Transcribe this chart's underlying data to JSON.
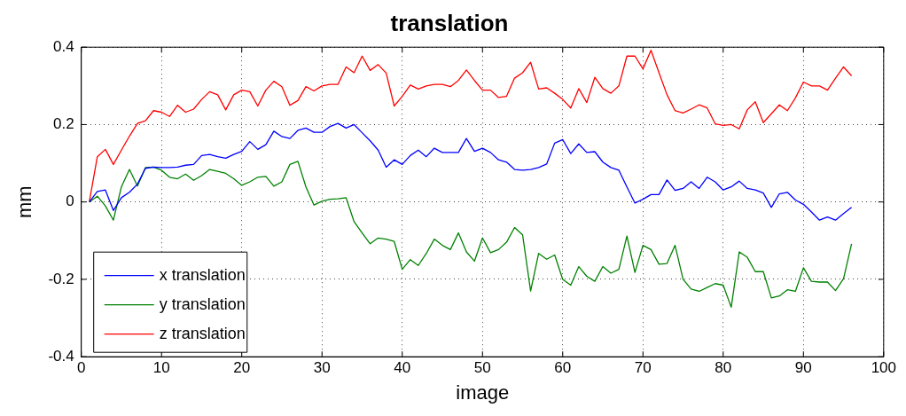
{
  "chart_data": {
    "type": "line",
    "title": "translation",
    "xlabel": "image",
    "ylabel": "mm",
    "x": [
      1,
      2,
      3,
      4,
      5,
      6,
      7,
      8,
      9,
      10,
      11,
      12,
      13,
      14,
      15,
      16,
      17,
      18,
      19,
      20,
      21,
      22,
      23,
      24,
      25,
      26,
      27,
      28,
      29,
      30,
      31,
      32,
      33,
      34,
      35,
      36,
      37,
      38,
      39,
      40,
      41,
      42,
      43,
      44,
      45,
      46,
      47,
      48,
      49,
      50,
      51,
      52,
      53,
      54,
      55,
      56,
      57,
      58,
      59,
      60,
      61,
      62,
      63,
      64,
      65,
      66,
      67,
      68,
      69,
      70,
      71,
      72,
      73,
      74,
      75,
      76,
      77,
      78,
      79,
      80,
      81,
      82,
      83,
      84,
      85,
      86,
      87,
      88,
      89,
      90,
      91,
      92,
      93,
      94,
      95,
      96
    ],
    "series": [
      {
        "name": "x translation",
        "color": "#0000ff",
        "values": [
          0,
          0.027,
          0.031,
          -0.022,
          0.011,
          0.025,
          0.046,
          0.087,
          0.09,
          0.089,
          0.089,
          0.09,
          0.095,
          0.097,
          0.12,
          0.123,
          0.117,
          0.113,
          0.123,
          0.131,
          0.156,
          0.136,
          0.148,
          0.183,
          0.169,
          0.164,
          0.185,
          0.191,
          0.18,
          0.18,
          0.195,
          0.203,
          0.191,
          0.2,
          0.179,
          0.158,
          0.134,
          0.09,
          0.109,
          0.097,
          0.12,
          0.134,
          0.117,
          0.139,
          0.128,
          0.128,
          0.128,
          0.164,
          0.131,
          0.139,
          0.128,
          0.109,
          0.103,
          0.084,
          0.082,
          0.084,
          0.089,
          0.098,
          0.152,
          0.161,
          0.125,
          0.15,
          0.128,
          0.13,
          0.103,
          0.089,
          0.082,
          0.039,
          -0.003,
          0.007,
          0.019,
          0.019,
          0.057,
          0.03,
          0.035,
          0.052,
          0.035,
          0.064,
          0.052,
          0.031,
          0.039,
          0.054,
          0.035,
          0.031,
          0.023,
          -0.014,
          0.021,
          0.025,
          0.005,
          -0.006,
          -0.026,
          -0.047,
          -0.039,
          -0.047,
          -0.03,
          -0.014
        ]
      },
      {
        "name": "y translation",
        "color": "#008000",
        "values": [
          0,
          0.015,
          -0.01,
          -0.047,
          0.039,
          0.084,
          0.041,
          0.089,
          0.09,
          0.082,
          0.064,
          0.06,
          0.072,
          0.056,
          0.068,
          0.084,
          0.079,
          0.074,
          0.06,
          0.043,
          0.052,
          0.064,
          0.066,
          0.041,
          0.052,
          0.097,
          0.105,
          0.039,
          -0.008,
          0.002,
          0.007,
          0.008,
          0.011,
          -0.051,
          -0.08,
          -0.108,
          -0.093,
          -0.096,
          -0.102,
          -0.174,
          -0.149,
          -0.164,
          -0.133,
          -0.096,
          -0.112,
          -0.123,
          -0.08,
          -0.129,
          -0.153,
          -0.093,
          -0.131,
          -0.123,
          -0.104,
          -0.066,
          -0.085,
          -0.23,
          -0.133,
          -0.148,
          -0.137,
          -0.2,
          -0.215,
          -0.167,
          -0.192,
          -0.205,
          -0.167,
          -0.184,
          -0.174,
          -0.088,
          -0.182,
          -0.112,
          -0.123,
          -0.161,
          -0.159,
          -0.112,
          -0.2,
          -0.225,
          -0.231,
          -0.221,
          -0.211,
          -0.215,
          -0.272,
          -0.129,
          -0.143,
          -0.18,
          -0.18,
          -0.248,
          -0.243,
          -0.227,
          -0.231,
          -0.17,
          -0.205,
          -0.207,
          -0.207,
          -0.229,
          -0.198,
          -0.108
        ]
      },
      {
        "name": "z translation",
        "color": "#ff0000",
        "values": [
          0,
          0.117,
          0.136,
          0.097,
          0.134,
          0.17,
          0.203,
          0.21,
          0.236,
          0.232,
          0.221,
          0.25,
          0.232,
          0.24,
          0.265,
          0.285,
          0.277,
          0.238,
          0.277,
          0.289,
          0.285,
          0.248,
          0.289,
          0.312,
          0.298,
          0.25,
          0.262,
          0.298,
          0.287,
          0.3,
          0.304,
          0.304,
          0.349,
          0.334,
          0.377,
          0.34,
          0.355,
          0.333,
          0.248,
          0.273,
          0.302,
          0.292,
          0.3,
          0.304,
          0.304,
          0.298,
          0.314,
          0.341,
          0.314,
          0.289,
          0.289,
          0.27,
          0.273,
          0.32,
          0.334,
          0.361,
          0.292,
          0.295,
          0.281,
          0.265,
          0.243,
          0.293,
          0.257,
          0.322,
          0.293,
          0.281,
          0.3,
          0.377,
          0.377,
          0.344,
          0.392,
          0.334,
          0.277,
          0.236,
          0.23,
          0.24,
          0.251,
          0.243,
          0.202,
          0.198,
          0.2,
          0.189,
          0.238,
          0.259,
          0.205,
          0.228,
          0.251,
          0.236,
          0.269,
          0.31,
          0.3,
          0.3,
          0.289,
          0.32,
          0.349,
          0.326
        ]
      }
    ],
    "xlim": [
      0,
      100
    ],
    "xticks": [
      0,
      10,
      20,
      30,
      40,
      50,
      60,
      70,
      80,
      90,
      100
    ],
    "ylim": [
      -0.4,
      0.4
    ],
    "yticks": [
      -0.4,
      -0.2,
      0,
      0.2,
      0.4
    ],
    "grid": true,
    "legend": "bottom left",
    "marker": "none",
    "line_style": "solid"
  }
}
